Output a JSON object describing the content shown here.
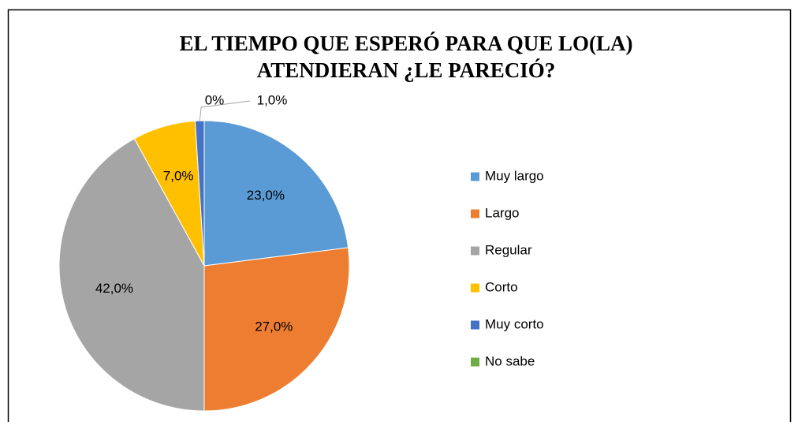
{
  "chart_data": {
    "type": "pie",
    "title": "EL TIEMPO QUE ESPERÓ PARA QUE LO(LA) ATENDIERAN ¿LE PARECIÓ?",
    "categories": [
      "Muy largo",
      "Largo",
      "Regular",
      "Corto",
      "Muy corto",
      "No sabe"
    ],
    "values": [
      23,
      27,
      42,
      7,
      1,
      0
    ],
    "value_labels": [
      "23,0%",
      "27,0%",
      "42,0%",
      "7,0%",
      "1,0%",
      "0%"
    ],
    "colors": [
      "#5b9bd5",
      "#ed7d31",
      "#a5a5a5",
      "#ffc000",
      "#4472c4",
      "#70ad47"
    ],
    "legend": "right"
  }
}
